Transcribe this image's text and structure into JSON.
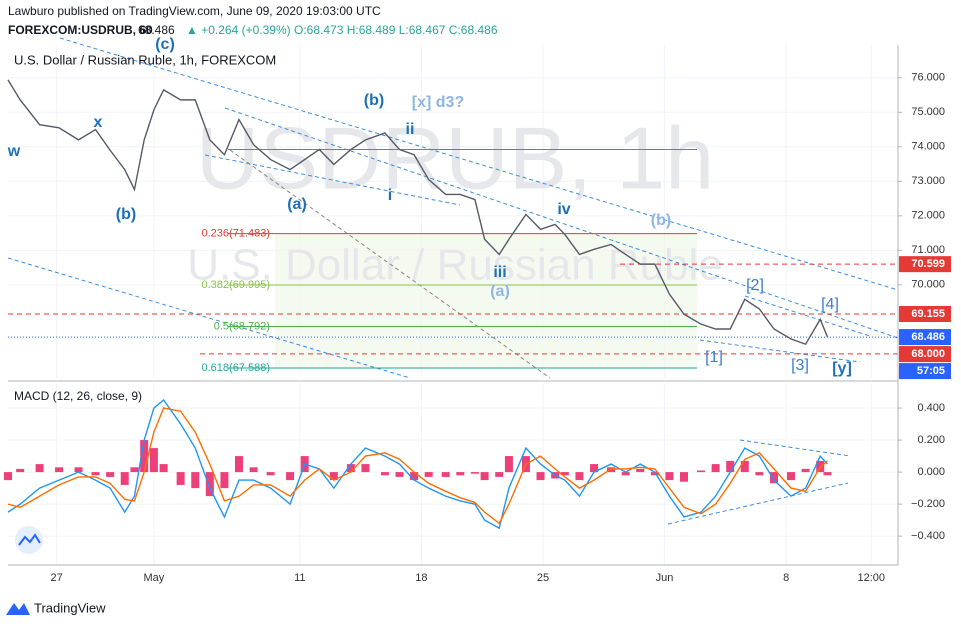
{
  "header": {
    "line1": "Lawburo published on TradingView.com, June 09, 2020 19:03:00 UTC",
    "symbol": "FOREXCOM:USDRUB, 60",
    "price": "68.486",
    "change": "▲ +0.264 (+0.39%)",
    "ohlc": "O:68.473 H:68.489 L:68.467 C:68.486"
  },
  "footer": {
    "brand": "TradingView"
  },
  "chart_data": [
    {
      "type": "line",
      "title": "U.S. Dollar / Russian Ruble, 1h, FOREXCOM",
      "watermark": [
        "USDRUB, 1h",
        "U.S. Dollar / Russian Ruble"
      ],
      "x": [
        -2.0,
        -1.5,
        -0.7,
        0.1,
        0.9,
        1.6,
        2.2,
        2.8,
        3.2,
        3.6,
        4.0,
        4.4,
        5.1,
        5.7,
        6.3,
        6.9,
        7.5,
        8.1,
        8.8,
        9.6,
        10.2,
        10.8,
        11.4,
        12.1,
        12.7,
        13.5,
        14.1,
        14.7,
        15.3,
        16.0,
        16.6,
        17.2,
        17.6,
        18.2,
        18.6,
        19.3,
        19.9,
        20.5,
        20.9,
        21.5,
        22.1,
        22.8,
        23.4,
        24.0,
        24.6,
        25.2,
        25.8,
        26.5,
        27.1,
        27.7,
        28.3,
        28.9,
        29.5,
        30.2,
        30.8,
        31.4,
        31.7
      ],
      "series": [
        {
          "color": "#555a66",
          "values": [
            75.94,
            75.36,
            74.64,
            74.55,
            74.2,
            74.5,
            73.9,
            73.34,
            72.76,
            74.2,
            75.07,
            75.65,
            75.36,
            75.36,
            74.2,
            73.77,
            74.79,
            74.06,
            73.63,
            73.34,
            73.63,
            73.92,
            73.49,
            73.92,
            74.2,
            74.4,
            73.92,
            73.77,
            73.05,
            72.62,
            72.62,
            72.47,
            71.32,
            70.88,
            71.32,
            72.04,
            71.61,
            71.75,
            71.46,
            70.88,
            71.03,
            71.17,
            70.88,
            70.6,
            70.6,
            69.73,
            69.15,
            68.86,
            68.72,
            68.72,
            69.58,
            69.3,
            68.72,
            68.43,
            68.28,
            69.0,
            68.49
          ]
        }
      ],
      "xlim": [
        -2,
        34.6
      ],
      "xticks": [
        {
          "value": 0,
          "label": "27"
        },
        {
          "value": 4,
          "label": "May"
        },
        {
          "value": 10,
          "label": "11"
        },
        {
          "value": 15,
          "label": "18"
        },
        {
          "value": 20,
          "label": "25"
        },
        {
          "value": 25,
          "label": "Jun"
        },
        {
          "value": 30,
          "label": "8"
        },
        {
          "value": 33.5,
          "label": "12:00"
        }
      ],
      "ylim": [
        67.3,
        76.95
      ],
      "yticks": [
        {
          "value": 76,
          "label": "76.000"
        },
        {
          "value": 75,
          "label": "75.000"
        },
        {
          "value": 74,
          "label": "74.000"
        },
        {
          "value": 73,
          "label": "73.000"
        },
        {
          "value": 72,
          "label": "72.000"
        },
        {
          "value": 71,
          "label": "71.000"
        },
        {
          "value": 70,
          "label": "70.000"
        }
      ],
      "grid": true,
      "fib_levels": [
        {
          "value": 73.92,
          "color": "#787b86"
        },
        {
          "value": 71.483,
          "label": "0.236(71.483)",
          "color": "#e53935"
        },
        {
          "value": 69.995,
          "label": "0.382(69.995)",
          "color": "#8bc34a"
        },
        {
          "value": 68.792,
          "label": "0.5(68.792)",
          "color": "#4caf50"
        },
        {
          "value": 67.588,
          "label": "0.618(67.588)",
          "color": "#26a69a"
        }
      ],
      "price_levels": [
        {
          "value": 70.599,
          "color": "#e53935"
        },
        {
          "value": 69.155,
          "color": "#e53935"
        },
        {
          "value": 68,
          "label": "68.000",
          "color": "#e53935"
        }
      ],
      "last": {
        "value": 68.486,
        "countdown": "57:05",
        "color": "#2962ff"
      },
      "annotations": [
        {
          "text": "w",
          "color": "#1e6fb8"
        },
        {
          "text": "x",
          "color": "#1e6fb8"
        },
        {
          "text": "(b)",
          "color": "#1e6fb8"
        },
        {
          "text": "(c)",
          "color": "#1e6fb8"
        },
        {
          "text": "(b)",
          "color": "#1e6fb8"
        },
        {
          "text": "[x] d3?",
          "color": "#8fb6e3"
        },
        {
          "text": "ii",
          "color": "#1e6fb8"
        },
        {
          "text": "(a)",
          "color": "#1e6fb8"
        },
        {
          "text": "i",
          "color": "#1e6fb8"
        },
        {
          "text": "iii",
          "color": "#1e6fb8"
        },
        {
          "text": "(a)",
          "color": "#8fb6e3"
        },
        {
          "text": "iv",
          "color": "#1e6fb8"
        },
        {
          "text": "(b)",
          "color": "#8fb6e3"
        },
        {
          "text": "[1]",
          "color": "#3d7cc9"
        },
        {
          "text": "[2]",
          "color": "#3d7cc9"
        },
        {
          "text": "[3]",
          "color": "#3d7cc9"
        },
        {
          "text": "[4]",
          "color": "#3d7cc9"
        },
        {
          "text": "[y]",
          "color": "#1e6fb8"
        }
      ]
    },
    {
      "type": "line",
      "title": "MACD (12, 26, close, 9)",
      "x": [
        -2.0,
        -1.5,
        -0.7,
        0.1,
        0.9,
        1.6,
        2.2,
        2.8,
        3.2,
        3.6,
        4.0,
        4.4,
        5.1,
        5.7,
        6.3,
        6.9,
        7.5,
        8.1,
        8.8,
        9.6,
        10.2,
        10.8,
        11.4,
        12.1,
        12.7,
        13.5,
        14.1,
        14.7,
        15.3,
        16.0,
        16.6,
        17.2,
        17.6,
        18.2,
        18.6,
        19.3,
        19.9,
        20.5,
        20.9,
        21.5,
        22.1,
        22.8,
        23.4,
        24.0,
        24.6,
        25.2,
        25.8,
        26.5,
        27.1,
        27.7,
        28.3,
        28.9,
        29.5,
        30.2,
        30.8,
        31.4,
        31.7
      ],
      "series": [
        {
          "type": "bar",
          "color": "#e91e63",
          "values": [
            -0.05,
            0.02,
            0.05,
            0.03,
            0.03,
            -0.02,
            -0.03,
            -0.08,
            0.03,
            0.2,
            0.15,
            0.05,
            -0.08,
            -0.1,
            -0.15,
            -0.1,
            0.1,
            0.03,
            -0.02,
            -0.05,
            0.1,
            0.0,
            -0.05,
            0.05,
            0.05,
            -0.02,
            -0.03,
            -0.05,
            -0.03,
            -0.03,
            -0.02,
            -0.01,
            -0.05,
            -0.03,
            0.1,
            0.1,
            -0.05,
            -0.04,
            -0.02,
            -0.05,
            0.05,
            0.03,
            -0.02,
            0.02,
            -0.02,
            -0.05,
            -0.06,
            0.01,
            0.05,
            0.07,
            0.07,
            -0.02,
            -0.07,
            -0.05,
            0.02,
            0.07,
            -0.02
          ]
        },
        {
          "type": "line",
          "color": "#2196f3",
          "values": [
            -0.25,
            -0.2,
            -0.1,
            -0.05,
            0.0,
            -0.05,
            -0.1,
            -0.25,
            -0.15,
            0.2,
            0.4,
            0.45,
            0.3,
            0.15,
            -0.1,
            -0.28,
            -0.05,
            -0.05,
            -0.1,
            -0.2,
            0.05,
            0.02,
            -0.1,
            0.05,
            0.15,
            0.1,
            0.05,
            -0.05,
            -0.1,
            -0.15,
            -0.18,
            -0.2,
            -0.3,
            -0.35,
            -0.1,
            0.15,
            0.05,
            -0.02,
            -0.05,
            -0.15,
            0.0,
            0.05,
            0.0,
            0.05,
            0.0,
            -0.15,
            -0.28,
            -0.25,
            -0.15,
            0.0,
            0.15,
            0.1,
            -0.05,
            -0.15,
            -0.1,
            0.1,
            0.05
          ]
        },
        {
          "type": "line",
          "color": "#ff6d00",
          "values": [
            -0.2,
            -0.22,
            -0.15,
            -0.08,
            -0.03,
            -0.03,
            -0.07,
            -0.17,
            -0.18,
            0.0,
            0.25,
            0.4,
            0.38,
            0.25,
            0.05,
            -0.18,
            -0.15,
            -0.08,
            -0.08,
            -0.15,
            -0.05,
            0.02,
            -0.05,
            0.0,
            0.1,
            0.12,
            0.08,
            0.0,
            -0.07,
            -0.12,
            -0.16,
            -0.19,
            -0.25,
            -0.32,
            -0.2,
            0.05,
            0.1,
            0.02,
            -0.03,
            -0.1,
            -0.05,
            0.02,
            0.02,
            0.03,
            0.02,
            -0.1,
            -0.22,
            -0.26,
            -0.2,
            -0.07,
            0.08,
            0.12,
            0.02,
            -0.1,
            -0.12,
            0.03,
            0.07
          ]
        }
      ],
      "ylim": [
        -0.58,
        0.55
      ],
      "yticks": [
        {
          "value": 0.4,
          "label": "0.400"
        },
        {
          "value": 0.2,
          "label": "0.200"
        },
        {
          "value": 0,
          "label": "0.000"
        },
        {
          "value": -0.2,
          "label": "−0.200"
        },
        {
          "value": -0.4,
          "label": "−0.400"
        }
      ]
    }
  ]
}
